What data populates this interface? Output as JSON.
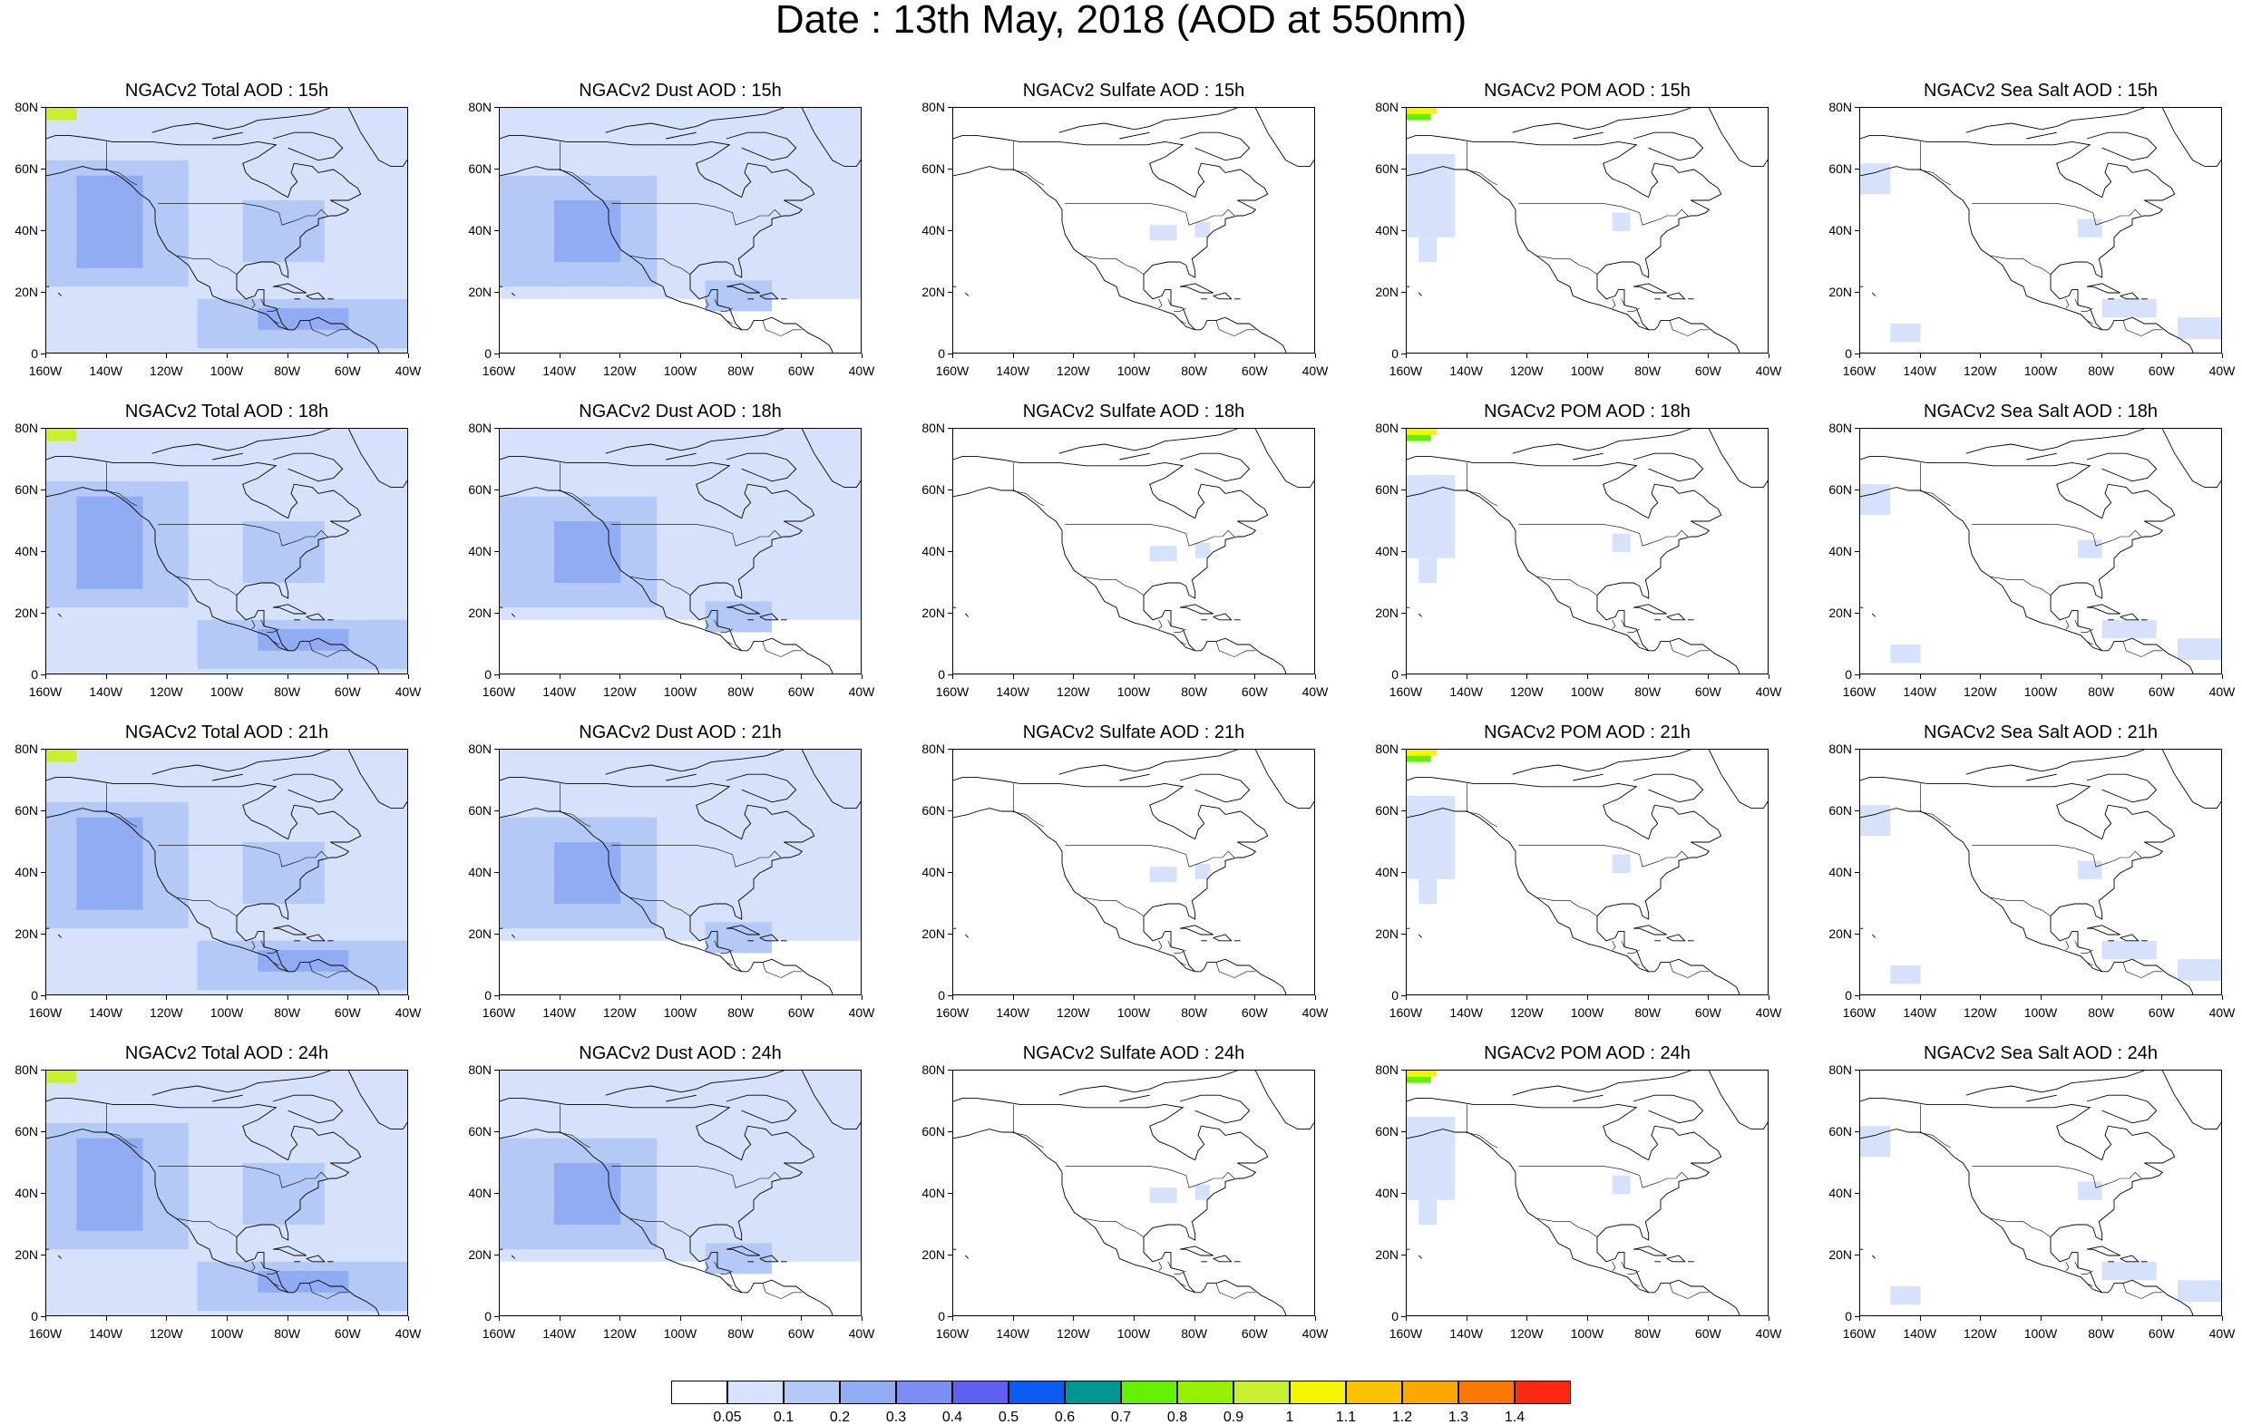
{
  "header": {
    "title": "Date : 13th May, 2018 (AOD at 550nm)"
  },
  "axes": {
    "y_labels": [
      "80N",
      "60N",
      "40N",
      "20N",
      "0"
    ],
    "x_labels": [
      "160W",
      "140W",
      "120W",
      "100W",
      "80W",
      "60W",
      "40W"
    ]
  },
  "columns": [
    {
      "key": "total",
      "field_level": 2
    },
    {
      "key": "dust",
      "field_level": 1.6
    },
    {
      "key": "sulfate",
      "field_level": 0.1
    },
    {
      "key": "pom",
      "field_level": 0.7
    },
    {
      "key": "seasalt",
      "field_level": 0.6
    }
  ],
  "panels": [
    [
      "NGACv2 Total AOD : 15h",
      "NGACv2 Dust AOD : 15h",
      "NGACv2 Sulfate AOD : 15h",
      "NGACv2 POM AOD : 15h",
      "NGACv2 Sea Salt AOD : 15h"
    ],
    [
      "NGACv2 Total AOD : 18h",
      "NGACv2 Dust AOD : 18h",
      "NGACv2 Sulfate AOD : 18h",
      "NGACv2 POM AOD : 18h",
      "NGACv2 Sea Salt AOD : 18h"
    ],
    [
      "NGACv2 Total AOD : 21h",
      "NGACv2 Dust AOD : 21h",
      "NGACv2 Sulfate AOD : 21h",
      "NGACv2 POM AOD : 21h",
      "NGACv2 Sea Salt AOD : 21h"
    ],
    [
      "NGACv2 Total AOD : 24h",
      "NGACv2 Dust AOD : 24h",
      "NGACv2 Sulfate AOD : 24h",
      "NGACv2 POM AOD : 24h",
      "NGACv2 Sea Salt  AOD : 24h"
    ]
  ],
  "colorbar": {
    "colors": [
      "#ffffff",
      "#d6e2fb",
      "#b4c9f6",
      "#92acf3",
      "#7b8ff2",
      "#5e60ef",
      "#0a5cf3",
      "#00958f",
      "#64f000",
      "#96f000",
      "#c8f030",
      "#f5f500",
      "#fcc200",
      "#fca800",
      "#fc7800",
      "#fc2a10"
    ],
    "labels": [
      "0.05",
      "0.1",
      "0.2",
      "0.3",
      "0.4",
      "0.5",
      "0.6",
      "0.7",
      "0.8",
      "0.9",
      "1",
      "1.1",
      "1.2",
      "1.3",
      "1.4"
    ]
  }
}
